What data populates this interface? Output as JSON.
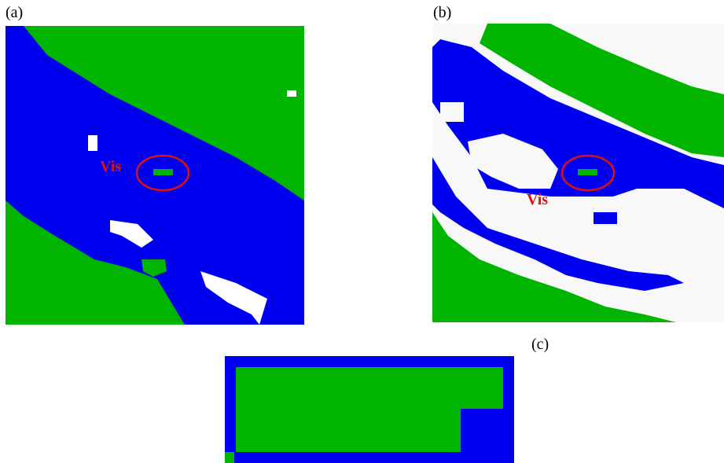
{
  "panels": [
    {
      "label": "(a)",
      "annotation": "Vis"
    },
    {
      "label": "(b)",
      "annotation": "Vis"
    },
    {
      "label": "(c)"
    }
  ]
}
